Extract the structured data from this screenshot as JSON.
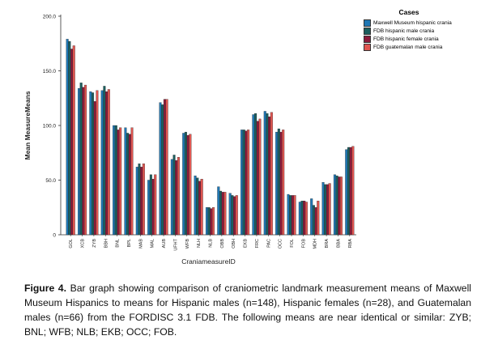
{
  "chart_data": {
    "type": "bar",
    "xlabel": "CraniameasureID",
    "ylabel": "Mean MeasureMeans",
    "ylim": [
      0,
      200
    ],
    "yticks": [
      "0",
      "50.0",
      "100.0",
      "150.0",
      "200.0"
    ],
    "categories": [
      "GOL",
      "XCB",
      "ZYB",
      "BBH",
      "BNL",
      "BPL",
      "MAB",
      "MAL",
      "AUB",
      "UFHT",
      "WFB",
      "NLH",
      "NLB",
      "OBB",
      "OBH",
      "EKB",
      "FRC",
      "PAC",
      "OCC",
      "FOL",
      "FOB",
      "MDH",
      "BRA",
      "BBA",
      "RBA"
    ],
    "legend_title": "Cases",
    "series": [
      {
        "name": "Maxwell Museum hispanic crania",
        "color": "#1f77b4",
        "values": [
          179,
          134,
          131,
          132,
          100,
          98,
          62,
          50,
          121,
          69,
          93,
          54,
          25,
          44,
          38,
          96,
          110,
          113,
          94,
          37,
          30,
          33,
          48,
          55,
          78
        ]
      },
      {
        "name": "FDB hispanic male crania",
        "color": "#1b5e5e",
        "values": [
          177,
          139,
          130,
          136,
          100,
          93,
          65,
          55,
          119,
          73,
          94,
          52,
          25,
          40,
          36,
          96,
          111,
          111,
          97,
          36,
          31,
          27,
          46,
          54,
          80
        ]
      },
      {
        "name": "FDB hispanic female crania",
        "color": "#8b1a3a",
        "values": [
          170,
          135,
          122,
          131,
          96,
          92,
          62,
          51,
          124,
          68,
          91,
          49,
          24,
          39,
          35,
          95,
          104,
          108,
          94,
          36,
          31,
          25,
          46,
          53,
          80
        ]
      },
      {
        "name": "FDB guatemalan male crania",
        "color": "#e05550",
        "values": [
          173,
          137,
          132,
          133,
          98,
          98,
          65,
          55,
          124,
          71,
          92,
          51,
          25,
          39,
          36,
          96,
          106,
          112,
          96,
          36,
          30,
          31,
          47,
          53,
          81
        ]
      }
    ]
  },
  "caption": {
    "label": "Figure 4.",
    "text": "Bar graph showing comparison of craniometric landmark measurement means of Maxwell Museum Hispanics to means for Hispanic males (n=148), Hispanic females (n=28), and Guatemalan males (n=66) from the FORDISC 3.1 FDB. The following means are near identical or similar: ZYB; BNL; WFB; NLB; EKB; OCC; FOB."
  }
}
